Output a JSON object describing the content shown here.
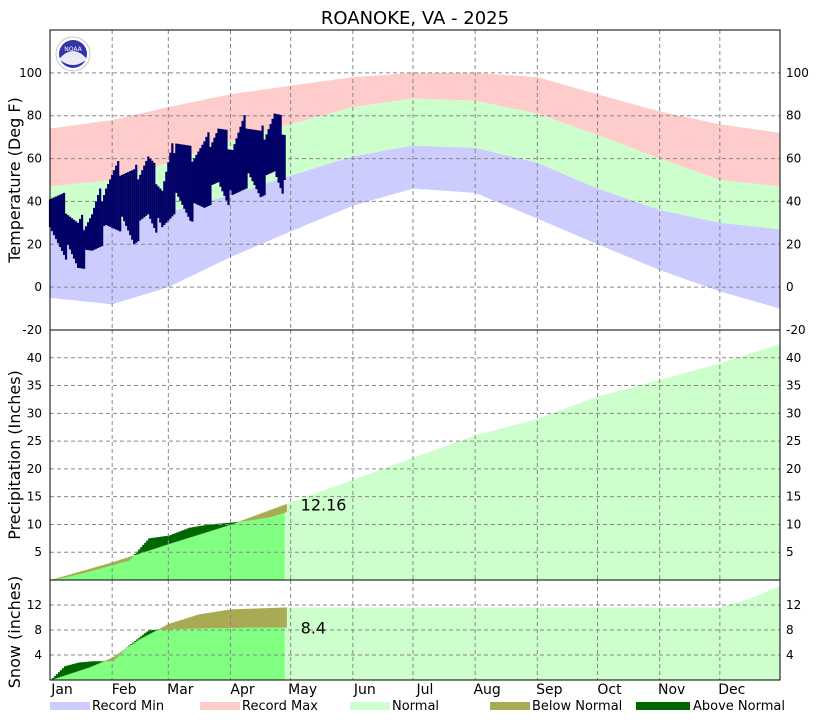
{
  "chart_data": [
    {
      "type": "area",
      "title": "ROANOKE, VA - 2025",
      "ylabel": "Temperature (Deg F)",
      "ylim": [
        -20,
        120
      ],
      "yticks": [
        -20,
        0,
        20,
        40,
        60,
        80,
        100
      ],
      "grid": true,
      "x_categories": [
        "Jan",
        "Feb",
        "Mar",
        "Apr",
        "May",
        "Jun",
        "Jul",
        "Aug",
        "Sep",
        "Oct",
        "Nov",
        "Dec"
      ],
      "series": [
        {
          "name": "Record Max",
          "color": "#ffcccc",
          "x": [
            1,
            32,
            60,
            91,
            121,
            152,
            182,
            213,
            244,
            274,
            305,
            335,
            365
          ],
          "values": [
            74,
            78,
            84,
            90,
            94,
            98,
            100,
            100,
            98,
            90,
            82,
            76,
            72
          ]
        },
        {
          "name": "Normal High",
          "color": "#ccffcc",
          "x": [
            1,
            32,
            60,
            91,
            121,
            152,
            182,
            213,
            244,
            274,
            305,
            335,
            365
          ],
          "values": [
            47,
            50,
            58,
            68,
            76,
            84,
            88,
            87,
            81,
            71,
            60,
            50,
            47
          ]
        },
        {
          "name": "Normal Low",
          "color": "#ccffcc",
          "x": [
            1,
            32,
            60,
            91,
            121,
            152,
            182,
            213,
            244,
            274,
            305,
            335,
            365
          ],
          "values": [
            27,
            29,
            35,
            43,
            52,
            61,
            66,
            65,
            58,
            46,
            36,
            30,
            27
          ]
        },
        {
          "name": "Record Min",
          "color": "#ccccff",
          "x": [
            1,
            32,
            60,
            91,
            121,
            152,
            182,
            213,
            244,
            274,
            305,
            335,
            365
          ],
          "values": [
            -5,
            -8,
            0,
            14,
            26,
            38,
            46,
            44,
            32,
            20,
            8,
            -2,
            -10
          ]
        },
        {
          "name": "Observed High",
          "color": "#000066",
          "x": [
            1,
            8,
            15,
            22,
            29,
            36,
            43,
            50,
            57,
            64,
            71,
            78,
            85,
            92,
            99,
            106,
            113,
            118
          ],
          "values": [
            44,
            40,
            28,
            34,
            48,
            56,
            52,
            60,
            46,
            70,
            62,
            66,
            74,
            66,
            78,
            70,
            80,
            74
          ]
        },
        {
          "name": "Observed Low",
          "color": "#000066",
          "x": [
            1,
            8,
            15,
            22,
            29,
            36,
            43,
            50,
            57,
            64,
            71,
            78,
            85,
            92,
            99,
            106,
            113,
            118
          ],
          "values": [
            24,
            18,
            10,
            16,
            26,
            30,
            22,
            34,
            26,
            40,
            34,
            38,
            48,
            40,
            50,
            44,
            54,
            46
          ]
        }
      ]
    },
    {
      "type": "area",
      "ylabel": "Precipitation (Inches)",
      "ylim": [
        0,
        45
      ],
      "yticks": [
        5,
        10,
        15,
        20,
        25,
        30,
        35,
        40
      ],
      "grid": true,
      "annotation": "12.16",
      "series": [
        {
          "name": "Normal",
          "color": "#ccffcc",
          "x": [
            1,
            32,
            60,
            91,
            121,
            152,
            182,
            213,
            244,
            274,
            305,
            335,
            365
          ],
          "values": [
            0,
            3.2,
            6.5,
            10,
            14,
            18,
            22,
            26,
            29,
            33,
            36,
            39,
            42.5
          ]
        },
        {
          "name": "Observed",
          "color": "#008000",
          "x": [
            1,
            10,
            20,
            32,
            40,
            50,
            60,
            70,
            80,
            90,
            100,
            110,
            118
          ],
          "values": [
            0,
            0.6,
            1.5,
            2.7,
            3.5,
            7.5,
            8.0,
            9.4,
            10.0,
            10.3,
            10.7,
            11.3,
            12.16
          ]
        }
      ]
    },
    {
      "type": "area",
      "ylabel": "Snow (inches)",
      "ylim": [
        0,
        16
      ],
      "yticks": [
        4,
        8,
        12
      ],
      "grid": true,
      "annotation": "8.4",
      "series": [
        {
          "name": "Normal",
          "color": "#ccffcc",
          "x": [
            1,
            20,
            32,
            45,
            60,
            75,
            91,
            118,
            150,
            250,
            335,
            350,
            365
          ],
          "values": [
            0,
            2,
            3.6,
            6.5,
            9,
            10.5,
            11.3,
            11.6,
            11.6,
            11.6,
            11.6,
            13,
            15
          ]
        },
        {
          "name": "Observed",
          "color": "#008000",
          "x": [
            1,
            8,
            15,
            22,
            32,
            40,
            50,
            60,
            70,
            80,
            90,
            100,
            110,
            118
          ],
          "values": [
            0,
            2.2,
            2.8,
            3,
            3,
            5.5,
            8,
            8.1,
            8.2,
            8.3,
            8.3,
            8.4,
            8.4,
            8.4
          ]
        }
      ]
    }
  ],
  "legend": [
    {
      "label": "Record Min",
      "color": "#ccccff"
    },
    {
      "label": "Record Max",
      "color": "#ffcccc"
    },
    {
      "label": "Normal",
      "color": "#ccffcc"
    },
    {
      "label": "Below Normal",
      "color": "#aaaa55"
    },
    {
      "label": "Above Normal",
      "color": "#006600"
    }
  ],
  "logo": {
    "text": "NOAA"
  },
  "obs_color": "#000066",
  "obs_normal_color": "#80ff80"
}
